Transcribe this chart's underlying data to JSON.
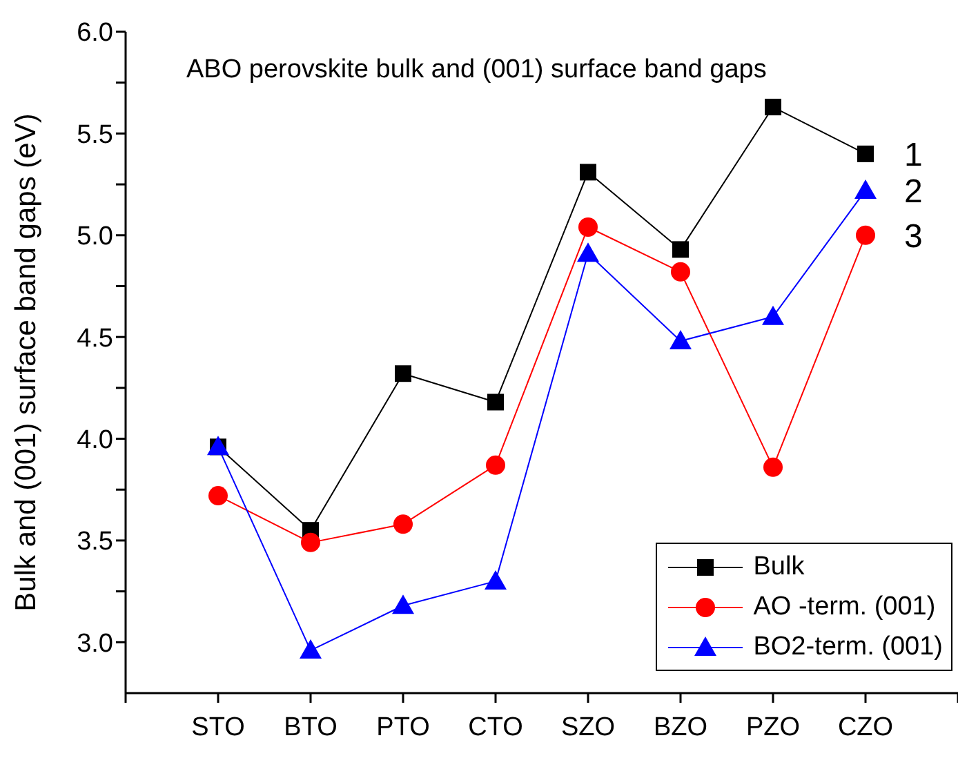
{
  "chart_data": {
    "type": "line",
    "title": "ABO perovskite bulk and (001) surface band gaps",
    "ylabel": "Bulk and (001) surface band gaps (eV)",
    "categories": [
      null,
      "STO",
      "BTO",
      "PTO",
      "CTO",
      "SZO",
      "BZO",
      "PZO",
      "CZO",
      null
    ],
    "series": [
      {
        "name": "Bulk",
        "color": "#000000",
        "marker": "square",
        "values": [
          null,
          3.96,
          3.55,
          4.32,
          4.18,
          5.31,
          4.93,
          5.63,
          5.4,
          null
        ]
      },
      {
        "name": "AO -term. (001)",
        "color": "#ff0000",
        "marker": "circle",
        "values": [
          null,
          3.72,
          3.49,
          3.58,
          3.87,
          5.04,
          4.82,
          3.86,
          5.0,
          null
        ]
      },
      {
        "name": "BO2-term. (001)",
        "color": "#0000ff",
        "marker": "triangle",
        "values": [
          null,
          3.96,
          2.96,
          3.18,
          3.3,
          4.91,
          4.48,
          4.6,
          5.22,
          null
        ]
      }
    ],
    "ylim": [
      2.75,
      6.0
    ],
    "yticks": [
      {
        "value": 3,
        "label": "3.0"
      },
      {
        "value": 3.25,
        "label": null
      },
      {
        "value": 3.5,
        "label": "3.5"
      },
      {
        "value": 3.75,
        "label": null
      },
      {
        "value": 4,
        "label": "4.0"
      },
      {
        "value": 4.25,
        "label": null
      },
      {
        "value": 4.5,
        "label": "4.5"
      },
      {
        "value": 4.75,
        "label": null
      },
      {
        "value": 5,
        "label": "5.0"
      },
      {
        "value": 5.25,
        "label": null
      },
      {
        "value": 5.5,
        "label": "5.5"
      },
      {
        "value": 5.75,
        "label": null
      },
      {
        "value": 6,
        "label": "6.0"
      }
    ],
    "annotations": [
      {
        "text": "1",
        "x": "CZO",
        "y": 5.4
      },
      {
        "text": "2",
        "x": "CZO",
        "y": 5.22
      },
      {
        "text": "3",
        "x": "CZO",
        "y": 5.0
      }
    ],
    "grid": false,
    "legend": "bottom right",
    "line_style": "solid"
  }
}
